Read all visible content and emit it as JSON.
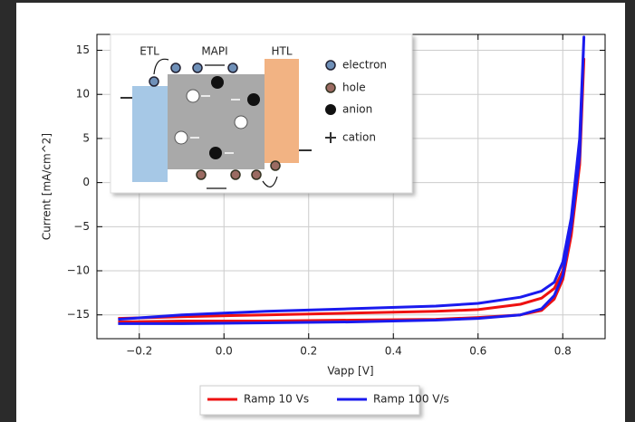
{
  "chart_data": {
    "type": "line",
    "xlabel": "Vapp [V]",
    "ylabel": "Current [mA/cm^2]",
    "x": [
      -0.25,
      -0.1,
      0.1,
      0.3,
      0.5,
      0.6,
      0.7,
      0.75,
      0.78,
      0.8,
      0.82,
      0.84,
      0.85,
      0.84,
      0.82,
      0.8,
      0.78,
      0.75,
      0.7,
      0.6,
      0.5,
      0.3,
      0.1,
      -0.1,
      -0.25
    ],
    "series": [
      {
        "name": "Ramp 10 Vs",
        "color": "#ee1111",
        "values": [
          -15.4,
          -15.2,
          -15.0,
          -14.8,
          -14.6,
          -14.4,
          -13.8,
          -13.1,
          -12.0,
          -10.0,
          -5.0,
          4.0,
          14.0,
          2.0,
          -6.0,
          -11.0,
          -13.2,
          -14.5,
          -15.0,
          -15.3,
          -15.5,
          -15.6,
          -15.7,
          -15.7,
          -15.8
        ]
      },
      {
        "name": "Ramp 100 V/s",
        "color": "#1a1aee",
        "values": [
          -15.5,
          -15.0,
          -14.6,
          -14.3,
          -14.0,
          -13.7,
          -13.0,
          -12.3,
          -11.3,
          -9.0,
          -4.0,
          5.0,
          16.5,
          3.0,
          -5.0,
          -10.5,
          -12.8,
          -14.3,
          -15.0,
          -15.4,
          -15.6,
          -15.8,
          -15.9,
          -16.0,
          -16.0
        ]
      }
    ],
    "xlim": [
      -0.3,
      0.9
    ],
    "ylim": [
      -17.7,
      16.8
    ],
    "xticks": [
      {
        "value": -0.2,
        "label": "−0.2"
      },
      {
        "value": 0,
        "label": "0.0"
      },
      0.2,
      0.4,
      0.6,
      0.8
    ],
    "yticks": [
      {
        "value": -15,
        "label": "−15"
      },
      {
        "value": -10,
        "label": "−10"
      },
      {
        "value": -5,
        "label": "−5"
      },
      0,
      5,
      10,
      15
    ],
    "grid": true,
    "legend": "bottom",
    "annotations": [
      "ETL",
      "MAPI",
      "HTL",
      "electron",
      "hole",
      "anion",
      "cation"
    ]
  }
}
